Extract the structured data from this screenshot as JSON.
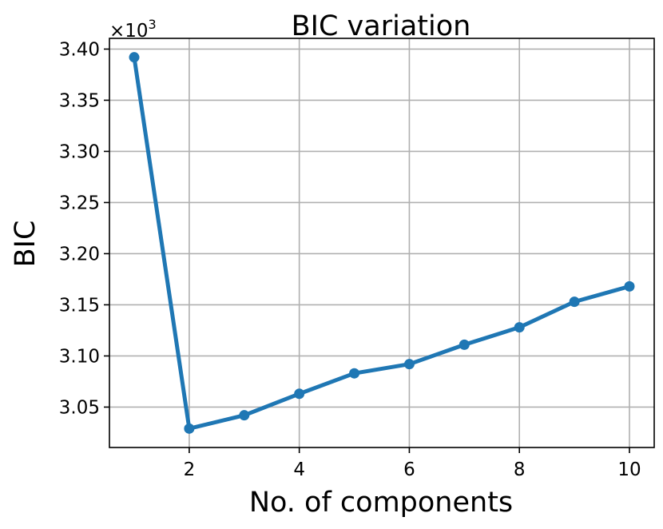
{
  "chart_data": {
    "type": "line",
    "title": "BIC variation",
    "xlabel": "No. of components",
    "ylabel": "BIC",
    "y_offset_text": "×10",
    "y_offset_exponent": "3",
    "xlim": [
      0.55,
      10.45
    ],
    "ylim": [
      3.0105,
      3.4105
    ],
    "x_ticks": [
      2,
      4,
      6,
      8,
      10
    ],
    "x_tick_labels": [
      "2",
      "4",
      "6",
      "8",
      "10"
    ],
    "y_ticks": [
      3.05,
      3.1,
      3.15,
      3.2,
      3.25,
      3.3,
      3.35,
      3.4
    ],
    "y_tick_labels": [
      "3.05",
      "3.10",
      "3.15",
      "3.20",
      "3.25",
      "3.30",
      "3.35",
      "3.40"
    ],
    "grid": true,
    "color": "#1f77b4",
    "series": [
      {
        "x": [
          1,
          2,
          3,
          4,
          5,
          6,
          7,
          8,
          9,
          10
        ],
        "y": [
          3.392,
          3.029,
          3.042,
          3.063,
          3.083,
          3.092,
          3.111,
          3.128,
          3.153,
          3.168
        ]
      }
    ]
  }
}
